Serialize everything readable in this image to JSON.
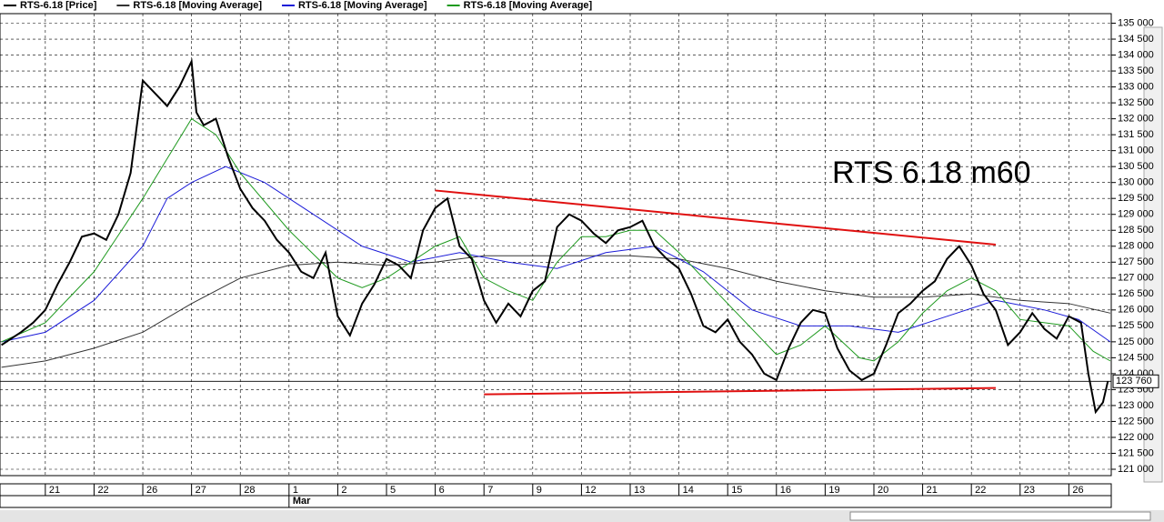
{
  "chart_data": {
    "type": "line",
    "annotation": "RTS 6.18 m60",
    "xlim": [
      -0.93,
      21.87
    ],
    "xticks": [
      {
        "value": 0,
        "label": "21"
      },
      {
        "value": 1,
        "label": "22"
      },
      {
        "value": 2,
        "label": "26"
      },
      {
        "value": 3,
        "label": "27"
      },
      {
        "value": 4,
        "label": "28"
      },
      {
        "value": 5,
        "label": "1"
      },
      {
        "value": 6,
        "label": "2"
      },
      {
        "value": 7,
        "label": "5"
      },
      {
        "value": 8,
        "label": "6"
      },
      {
        "value": 9,
        "label": "7"
      },
      {
        "value": 10,
        "label": "9"
      },
      {
        "value": 11,
        "label": "12"
      },
      {
        "value": 12,
        "label": "13"
      },
      {
        "value": 13,
        "label": "14"
      },
      {
        "value": 14,
        "label": "15"
      },
      {
        "value": 15,
        "label": "16"
      },
      {
        "value": 16,
        "label": "19"
      },
      {
        "value": 17,
        "label": "20"
      },
      {
        "value": 18,
        "label": "21"
      },
      {
        "value": 19,
        "label": "22"
      },
      {
        "value": 20,
        "label": "23"
      },
      {
        "value": 21,
        "label": "26"
      }
    ],
    "month_labels": [
      {
        "value": 5,
        "label": "Mar"
      }
    ],
    "ylim": [
      120800,
      135300
    ],
    "yticks": [
      {
        "value": 121000,
        "label": "121 000"
      },
      {
        "value": 121500,
        "label": "121 500"
      },
      {
        "value": 122000,
        "label": "122 000"
      },
      {
        "value": 122500,
        "label": "122 500"
      },
      {
        "value": 123000,
        "label": "123 000"
      },
      {
        "value": 123500,
        "label": "123 500"
      },
      {
        "value": 124000,
        "label": "124 000"
      },
      {
        "value": 124500,
        "label": "124 500"
      },
      {
        "value": 125000,
        "label": "125 000"
      },
      {
        "value": 125500,
        "label": "125 500"
      },
      {
        "value": 126000,
        "label": "126 000"
      },
      {
        "value": 126500,
        "label": "126 500"
      },
      {
        "value": 127000,
        "label": "127 000"
      },
      {
        "value": 127500,
        "label": "127 500"
      },
      {
        "value": 128000,
        "label": "128 000"
      },
      {
        "value": 128500,
        "label": "128 500"
      },
      {
        "value": 129000,
        "label": "129 000"
      },
      {
        "value": 129500,
        "label": "129 500"
      },
      {
        "value": 130000,
        "label": "130 000"
      },
      {
        "value": 130500,
        "label": "130 500"
      },
      {
        "value": 131000,
        "label": "131 000"
      },
      {
        "value": 131500,
        "label": "131 500"
      },
      {
        "value": 132000,
        "label": "132 000"
      },
      {
        "value": 132500,
        "label": "132 500"
      },
      {
        "value": 133000,
        "label": "133 000"
      },
      {
        "value": 133500,
        "label": "133 500"
      },
      {
        "value": 134000,
        "label": "134 000"
      },
      {
        "value": 134500,
        "label": "134 500"
      },
      {
        "value": 135000,
        "label": "135 000"
      }
    ],
    "grid": true,
    "last_value": {
      "value": 123760,
      "label": "123 760"
    },
    "series": [
      {
        "name": "RTS-6.18 [Price]",
        "color": "#000000",
        "x": [
          -0.9,
          -0.5,
          -0.25,
          0,
          0.25,
          0.5,
          0.75,
          1,
          1.25,
          1.5,
          1.75,
          2,
          2.25,
          2.5,
          2.75,
          3,
          3.1,
          3.25,
          3.5,
          3.75,
          4,
          4.25,
          4.5,
          4.75,
          5,
          5.25,
          5.5,
          5.75,
          6,
          6.25,
          6.5,
          6.75,
          7,
          7.25,
          7.5,
          7.75,
          8,
          8.25,
          8.5,
          8.75,
          9,
          9.25,
          9.5,
          9.75,
          10,
          10.25,
          10.5,
          10.75,
          11,
          11.25,
          11.5,
          11.75,
          12,
          12.25,
          12.5,
          12.75,
          13,
          13.25,
          13.5,
          13.75,
          14,
          14.25,
          14.5,
          14.75,
          15,
          15.25,
          15.5,
          15.75,
          16,
          16.25,
          16.5,
          16.75,
          17,
          17.25,
          17.5,
          17.75,
          18,
          18.25,
          18.5,
          18.75,
          19,
          19.25,
          19.5,
          19.75,
          20,
          20.25,
          20.5,
          20.75,
          21,
          21.25,
          21.4,
          21.55,
          21.7,
          21.8
        ],
        "values": [
          124900,
          125300,
          125600,
          126000,
          126800,
          127500,
          128300,
          128400,
          128200,
          129000,
          130300,
          133200,
          132800,
          132400,
          133000,
          133800,
          132200,
          131800,
          132000,
          130800,
          129800,
          129200,
          128800,
          128200,
          127800,
          127200,
          127000,
          127800,
          125800,
          125200,
          126200,
          126800,
          127600,
          127400,
          127000,
          128500,
          129200,
          129500,
          128000,
          127600,
          126300,
          125600,
          126200,
          125800,
          126600,
          126900,
          128600,
          129000,
          128800,
          128400,
          128100,
          128500,
          128600,
          128800,
          128000,
          127600,
          127300,
          126500,
          125500,
          125300,
          125700,
          125000,
          124600,
          124000,
          123800,
          124800,
          125600,
          126000,
          125900,
          124800,
          124100,
          123800,
          124000,
          124900,
          125900,
          126200,
          126600,
          126900,
          127600,
          128000,
          127400,
          126500,
          126000,
          124900,
          125300,
          125900,
          125400,
          125100,
          125800,
          125600,
          124000,
          122800,
          123100,
          123760
        ]
      },
      {
        "name": "RTS-6.18 [Moving Average]",
        "color": "#333333",
        "x": [
          -0.9,
          0,
          1,
          2,
          3,
          4,
          5,
          6,
          7,
          8,
          9,
          10,
          11,
          12,
          13,
          14,
          15,
          16,
          17,
          18,
          19,
          20,
          21,
          21.85
        ],
        "values": [
          124200,
          124400,
          124800,
          125300,
          126200,
          127000,
          127400,
          127500,
          127400,
          127500,
          127700,
          127700,
          127700,
          127700,
          127600,
          127300,
          126900,
          126600,
          126400,
          126400,
          126500,
          126300,
          126200,
          125900
        ]
      },
      {
        "name": "RTS-6.18 [Moving Average]",
        "color": "#1c1cd8",
        "x": [
          -0.9,
          0,
          1,
          2,
          2.5,
          3,
          3.7,
          4.5,
          5.5,
          6.5,
          7.5,
          8.5,
          9.5,
          10.5,
          11.5,
          12.5,
          13.5,
          14.5,
          15.5,
          16.5,
          17.5,
          18.5,
          19.5,
          20.5,
          21.2,
          21.85
        ],
        "values": [
          125000,
          125300,
          126300,
          128000,
          129500,
          130000,
          130500,
          130000,
          129000,
          128000,
          127500,
          127800,
          127500,
          127300,
          127800,
          128000,
          127200,
          126000,
          125500,
          125500,
          125300,
          125800,
          126300,
          126000,
          125700,
          125000
        ]
      },
      {
        "name": "RTS-6.18 [Moving Average]",
        "color": "#1f9a1f",
        "x": [
          -0.9,
          0,
          1,
          2,
          3,
          3.5,
          4,
          5,
          6,
          6.5,
          7,
          8,
          8.5,
          9,
          9.5,
          10,
          10.5,
          11,
          11.5,
          12,
          12.5,
          13,
          14,
          15,
          15.5,
          16,
          16.7,
          17,
          17.5,
          18,
          18.5,
          19,
          19.5,
          20,
          21,
          21.5,
          21.85
        ],
        "values": [
          125000,
          125600,
          127200,
          129500,
          132000,
          131500,
          130300,
          128500,
          127000,
          126700,
          127000,
          128000,
          128300,
          127000,
          126600,
          126300,
          127500,
          128300,
          128300,
          128500,
          128500,
          127800,
          126200,
          124600,
          124900,
          125500,
          124500,
          124400,
          125000,
          125900,
          126600,
          127000,
          126600,
          125700,
          125500,
          124700,
          124400
        ]
      }
    ],
    "trendlines": [
      {
        "color": "#e01010",
        "x": [
          8,
          19.5
        ],
        "values": [
          129750,
          128050
        ]
      },
      {
        "color": "#e01010",
        "x": [
          9,
          19.5
        ],
        "values": [
          123350,
          123550
        ]
      }
    ]
  }
}
